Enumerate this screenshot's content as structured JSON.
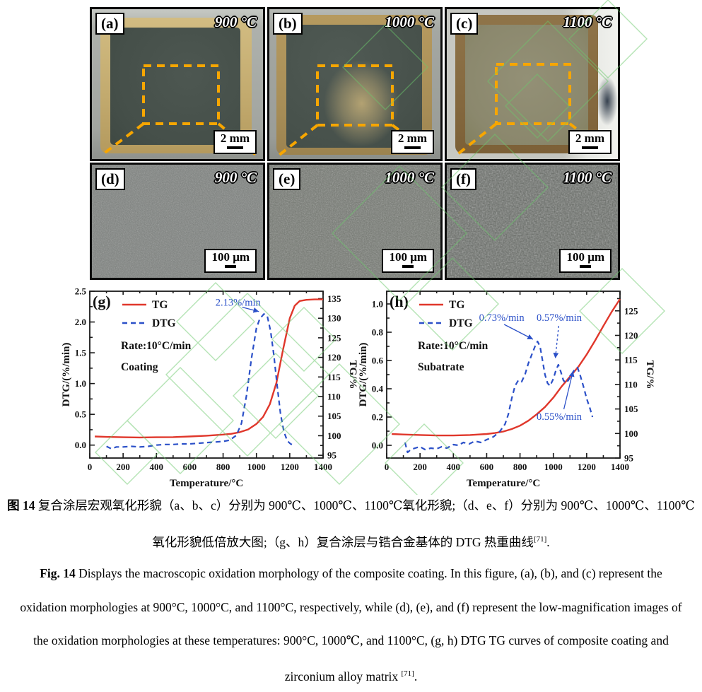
{
  "figure": {
    "photo_row": [
      {
        "label": "(a)",
        "temperature": "900 °C",
        "scale_label": "2 mm"
      },
      {
        "label": "(b)",
        "temperature": "1000 °C",
        "scale_label": "2 mm"
      },
      {
        "label": "(c)",
        "temperature": "1100 °C",
        "scale_label": "2 mm"
      }
    ],
    "sem_row": [
      {
        "label": "(d)",
        "temperature": "900 °C",
        "scale_label": "100 μm"
      },
      {
        "label": "(e)",
        "temperature": "1000 °C",
        "scale_label": "100 μm"
      },
      {
        "label": "(f)",
        "temperature": "1100 °C",
        "scale_label": "100 μm"
      }
    ]
  },
  "colors": {
    "dash_orange": "#f7a600",
    "tg_red": "#e0372b",
    "dtg_blue": "#2b50c8",
    "watermark_green": "#6cc96c"
  },
  "chart_data": [
    {
      "id": "g",
      "type": "line",
      "panel_label": "(g)",
      "xlabel": "Temperature/°C",
      "ylabel_left": "DTG/(%/min)",
      "ylabel_right": "TG/%",
      "x_range": [
        0,
        1400
      ],
      "x_ticks": [
        0,
        200,
        400,
        600,
        800,
        1000,
        1200,
        1400
      ],
      "yleft_range": [
        -0.21,
        2.5
      ],
      "yleft_ticks": [
        0.0,
        0.5,
        1.0,
        1.5,
        2.0,
        2.5
      ],
      "yleft_decimals": 1,
      "yright_range": [
        94.3,
        136.9
      ],
      "yright_ticks": [
        95,
        100,
        105,
        110,
        115,
        120,
        125,
        130,
        135
      ],
      "legend": [
        {
          "label": "TG",
          "dash": false
        },
        {
          "label": "DTG",
          "dash": true
        }
      ],
      "inner_labels": [
        "Rate:10°C/min",
        "Coating"
      ],
      "series": [
        {
          "name": "TG",
          "axis": "right",
          "style": "solid",
          "points": [
            [
              30,
              99.8
            ],
            [
              100,
              99.7
            ],
            [
              200,
              99.6
            ],
            [
              300,
              99.55
            ],
            [
              400,
              99.6
            ],
            [
              500,
              99.65
            ],
            [
              600,
              99.8
            ],
            [
              700,
              100.0
            ],
            [
              800,
              100.3
            ],
            [
              850,
              100.5
            ],
            [
              900,
              100.9
            ],
            [
              950,
              101.6
            ],
            [
              1000,
              103.0
            ],
            [
              1040,
              104.8
            ],
            [
              1080,
              108.0
            ],
            [
              1120,
              113.5
            ],
            [
              1160,
              122.0
            ],
            [
              1200,
              130.0
            ],
            [
              1230,
              133.2
            ],
            [
              1260,
              134.4
            ],
            [
              1300,
              134.7
            ],
            [
              1350,
              134.8
            ],
            [
              1400,
              134.8
            ]
          ]
        },
        {
          "name": "DTG",
          "axis": "left",
          "style": "dashed",
          "points": [
            [
              100,
              -0.02
            ],
            [
              130,
              -0.06
            ],
            [
              160,
              -0.03
            ],
            [
              200,
              -0.03
            ],
            [
              250,
              -0.02
            ],
            [
              300,
              -0.03
            ],
            [
              350,
              -0.02
            ],
            [
              400,
              0.0
            ],
            [
              450,
              0.01
            ],
            [
              500,
              0.01
            ],
            [
              550,
              0.02
            ],
            [
              600,
              0.02
            ],
            [
              650,
              0.03
            ],
            [
              700,
              0.04
            ],
            [
              750,
              0.05
            ],
            [
              800,
              0.06
            ],
            [
              840,
              0.08
            ],
            [
              880,
              0.16
            ],
            [
              910,
              0.35
            ],
            [
              940,
              0.8
            ],
            [
              970,
              1.4
            ],
            [
              1000,
              1.9
            ],
            [
              1020,
              2.05
            ],
            [
              1045,
              2.13
            ],
            [
              1065,
              2.1
            ],
            [
              1085,
              1.85
            ],
            [
              1105,
              1.45
            ],
            [
              1125,
              0.95
            ],
            [
              1145,
              0.5
            ],
            [
              1165,
              0.22
            ],
            [
              1185,
              0.07
            ],
            [
              1205,
              0.02
            ],
            [
              1220,
              0.0
            ]
          ]
        }
      ],
      "annotations": [
        {
          "text": "2.13%/min",
          "tx": 890,
          "ty": 2.31,
          "x1": 915,
          "y1": 2.24,
          "x2": 1015,
          "y2": 2.17,
          "dash": false
        }
      ]
    },
    {
      "id": "h",
      "type": "line",
      "panel_label": "(h)",
      "xlabel": "Temperature/°C",
      "ylabel_left": "DTG/(%/min)",
      "ylabel_right": "TG/%",
      "x_range": [
        0,
        1400
      ],
      "x_ticks": [
        0,
        200,
        400,
        600,
        800,
        1000,
        1200,
        1400
      ],
      "yleft_range": [
        -0.09,
        1.09
      ],
      "yleft_ticks": [
        0.0,
        0.2,
        0.4,
        0.6,
        0.8,
        1.0
      ],
      "yleft_decimals": 1,
      "yright_range": [
        95,
        129
      ],
      "yright_ticks": [
        95,
        100,
        105,
        110,
        115,
        120,
        125
      ],
      "legend": [
        {
          "label": "TG",
          "dash": false
        },
        {
          "label": "DTG",
          "dash": true
        }
      ],
      "inner_labels": [
        "Rate:10°C/min",
        "Subatrate"
      ],
      "series": [
        {
          "name": "TG",
          "axis": "right",
          "style": "solid",
          "points": [
            [
              30,
              99.9
            ],
            [
              100,
              99.8
            ],
            [
              200,
              99.7
            ],
            [
              300,
              99.6
            ],
            [
              400,
              99.6
            ],
            [
              500,
              99.7
            ],
            [
              600,
              99.9
            ],
            [
              650,
              100.1
            ],
            [
              700,
              100.4
            ],
            [
              750,
              100.9
            ],
            [
              800,
              101.6
            ],
            [
              850,
              102.6
            ],
            [
              900,
              103.9
            ],
            [
              950,
              105.4
            ],
            [
              1000,
              107.3
            ],
            [
              1050,
              109.6
            ],
            [
              1100,
              111.6
            ],
            [
              1150,
              113.6
            ],
            [
              1200,
              116.1
            ],
            [
              1250,
              118.9
            ],
            [
              1300,
              121.9
            ],
            [
              1350,
              124.8
            ],
            [
              1400,
              127.4
            ]
          ]
        },
        {
          "name": "DTG",
          "axis": "left",
          "style": "dashed",
          "points": [
            [
              110,
              0.02
            ],
            [
              125,
              -0.05
            ],
            [
              145,
              -0.03
            ],
            [
              170,
              -0.02
            ],
            [
              200,
              -0.01
            ],
            [
              230,
              -0.03
            ],
            [
              265,
              -0.02
            ],
            [
              300,
              -0.025
            ],
            [
              330,
              -0.01
            ],
            [
              360,
              -0.02
            ],
            [
              400,
              0.005
            ],
            [
              430,
              0.0
            ],
            [
              460,
              0.02
            ],
            [
              495,
              0.01
            ],
            [
              530,
              0.03
            ],
            [
              565,
              0.02
            ],
            [
              600,
              0.04
            ],
            [
              640,
              0.06
            ],
            [
              680,
              0.1
            ],
            [
              710,
              0.15
            ],
            [
              730,
              0.22
            ],
            [
              750,
              0.33
            ],
            [
              770,
              0.42
            ],
            [
              790,
              0.46
            ],
            [
              810,
              0.45
            ],
            [
              830,
              0.5
            ],
            [
              850,
              0.58
            ],
            [
              870,
              0.64
            ],
            [
              890,
              0.7
            ],
            [
              905,
              0.735
            ],
            [
              920,
              0.7
            ],
            [
              935,
              0.6
            ],
            [
              950,
              0.5
            ],
            [
              965,
              0.44
            ],
            [
              980,
              0.42
            ],
            [
              1000,
              0.47
            ],
            [
              1015,
              0.53
            ],
            [
              1030,
              0.57
            ],
            [
              1045,
              0.52
            ],
            [
              1060,
              0.46
            ],
            [
              1075,
              0.44
            ],
            [
              1090,
              0.46
            ],
            [
              1110,
              0.5
            ],
            [
              1130,
              0.54
            ],
            [
              1145,
              0.55
            ],
            [
              1160,
              0.5
            ],
            [
              1180,
              0.42
            ],
            [
              1200,
              0.33
            ],
            [
              1220,
              0.26
            ],
            [
              1235,
              0.2
            ]
          ]
        }
      ],
      "annotations": [
        {
          "text": "0.73%/min",
          "tx": 690,
          "ty": 0.9,
          "x1": 705,
          "y1": 0.855,
          "x2": 878,
          "y2": 0.75,
          "dash": false
        },
        {
          "text": "0.57%/min",
          "tx": 1035,
          "ty": 0.9,
          "x1": 1032,
          "y1": 0.845,
          "x2": 1012,
          "y2": 0.615,
          "dash": true
        },
        {
          "text": "0.55%/min",
          "tx": 1035,
          "ty": 0.2,
          "x1": 1063,
          "y1": 0.255,
          "x2": 1118,
          "y2": 0.525,
          "dash": false
        }
      ]
    }
  ],
  "caption": {
    "lines": [
      [
        {
          "text": "图 14 ",
          "bold": true
        },
        {
          "text": "复合涂层宏观氧化形貌（a、b、c）分别为 900℃、1000℃、1100℃氧化形貌;（d、e、f）分别为 900℃、1000℃、1100℃"
        }
      ],
      [
        {
          "text": "氧化形貌低倍放大图;（g、h）复合涂层与锆合金基体的 DTG 热重曲线"
        },
        {
          "text": "[71]",
          "sup": true
        },
        {
          "text": "."
        }
      ],
      [
        {
          "text": "Fig. 14 ",
          "bold": true
        },
        {
          "text": "Displays the macroscopic oxidation morphology of the composite coating. In this figure, (a), (b), and (c) represent the"
        }
      ],
      [
        {
          "text": "oxidation morphologies at 900°C, 1000°C, and 1100°C, respectively, while (d), (e), and (f) represent the low-magnification images of"
        }
      ],
      [
        {
          "text": "the oxidation morphologies at these temperatures: 900°C, 1000℃, and 1100°C, (g, h) DTG TG curves of composite coating and"
        }
      ],
      [
        {
          "text": "zirconium alloy matrix "
        },
        {
          "text": "[71]",
          "sup": true
        },
        {
          "text": "."
        }
      ]
    ]
  }
}
